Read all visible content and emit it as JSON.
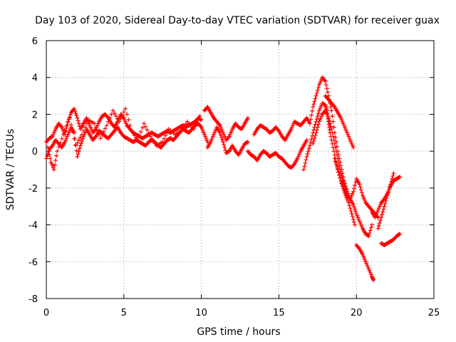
{
  "chart_data": {
    "type": "scatter",
    "title": "Day 103 of 2020, Sidereal Day-to-day VTEC variation (SDTVAR) for receiver guax",
    "xlabel": "GPS time / hours",
    "ylabel": "SDTVAR / TECUs",
    "xlim": [
      0,
      25
    ],
    "ylim": [
      -8,
      6
    ],
    "xticks": [
      0,
      5,
      10,
      15,
      20,
      25
    ],
    "yticks": [
      -8,
      -6,
      -4,
      -2,
      0,
      2,
      4,
      6
    ],
    "xtick_labels": [
      "0",
      "5",
      "10",
      "15",
      "20",
      "25"
    ],
    "ytick_labels": [
      "-8",
      "-6",
      "-4",
      "-2",
      "0",
      "2",
      "4",
      "6"
    ],
    "grid": true,
    "marker": "+",
    "color": "#ff0000",
    "series": [
      {
        "name": "track-1",
        "x": [
          0.0,
          0.2,
          0.4,
          0.6,
          0.8,
          1.0,
          1.2,
          1.4,
          1.6,
          1.8,
          2.0,
          2.2,
          2.4,
          2.6,
          2.8,
          3.0,
          3.2,
          3.4,
          3.6,
          3.8,
          4.0,
          4.2,
          4.4,
          4.6,
          4.8,
          5.0,
          5.2,
          5.4,
          5.6,
          5.8,
          6.0,
          6.2,
          6.4,
          6.6,
          6.8,
          7.0,
          7.2,
          7.4,
          7.6,
          7.8,
          8.0,
          8.2,
          8.4,
          8.6,
          8.8,
          9.0,
          9.2,
          9.4,
          9.6,
          9.8,
          10.0
        ],
        "y": [
          0.5,
          0.7,
          0.8,
          1.2,
          1.5,
          1.3,
          0.9,
          1.6,
          2.1,
          2.3,
          1.8,
          1.2,
          1.5,
          1.8,
          1.4,
          1.0,
          1.2,
          1.6,
          1.9,
          2.0,
          1.8,
          1.5,
          1.3,
          1.6,
          2.0,
          1.8,
          1.4,
          1.2,
          1.0,
          0.9,
          0.8,
          0.7,
          0.8,
          0.9,
          1.0,
          0.9,
          0.8,
          0.9,
          1.0,
          1.1,
          1.0,
          1.1,
          1.2,
          1.3,
          1.4,
          1.3,
          1.4,
          1.5,
          1.6,
          1.8,
          1.7
        ]
      },
      {
        "name": "track-2",
        "x": [
          0.0,
          0.2,
          0.4,
          0.6,
          0.8,
          1.0,
          1.2,
          1.4,
          1.6,
          1.8,
          2.0,
          2.2,
          2.4,
          2.6,
          2.8,
          3.0,
          3.2,
          3.4,
          3.6,
          3.8,
          4.0,
          4.2,
          4.4,
          4.6,
          4.8,
          5.0,
          5.2,
          5.4,
          5.6,
          5.8,
          6.0,
          6.2,
          6.4,
          6.6,
          6.8,
          7.0,
          7.2,
          7.4,
          7.6,
          7.8,
          8.0,
          8.2,
          8.4,
          8.6,
          8.8,
          9.0,
          9.2,
          9.4,
          9.6,
          9.8,
          10.0,
          10.2,
          10.4
        ],
        "y": [
          -0.4,
          0.1,
          0.3,
          0.6,
          0.4,
          0.2,
          0.5,
          0.9,
          1.3,
          1.0,
          -0.3,
          0.3,
          0.8,
          1.2,
          0.9,
          0.6,
          0.8,
          1.1,
          1.0,
          0.8,
          0.7,
          0.9,
          1.1,
          1.3,
          1.0,
          0.8,
          0.7,
          0.6,
          0.5,
          0.6,
          0.5,
          0.4,
          0.3,
          0.5,
          0.6,
          0.5,
          0.3,
          0.2,
          0.4,
          0.6,
          0.7,
          0.6,
          0.8,
          1.0,
          1.2,
          1.1,
          1.0,
          1.2,
          1.4,
          1.5,
          1.3,
          0.9,
          0.5
        ]
      },
      {
        "name": "track-3",
        "x": [
          0.1,
          0.3,
          0.5,
          0.7,
          1.1,
          1.5,
          1.9,
          2.3,
          2.7,
          3.1,
          3.5,
          3.9,
          4.3,
          4.7,
          5.1,
          5.5,
          5.9,
          6.3,
          6.7,
          7.1,
          7.5,
          7.9,
          8.3,
          8.7,
          9.1,
          9.5,
          9.9
        ],
        "y": [
          0.2,
          -0.6,
          -1.0,
          0.0,
          0.9,
          1.8,
          0.3,
          0.9,
          1.7,
          1.5,
          0.7,
          1.4,
          2.2,
          1.6,
          2.3,
          1.1,
          0.6,
          1.5,
          0.8,
          0.3,
          0.5,
          1.2,
          0.9,
          1.1,
          1.6,
          1.2,
          1.9
        ]
      },
      {
        "name": "track-4",
        "x": [
          10.2,
          10.4,
          10.6,
          10.8,
          11.0,
          11.2,
          11.4,
          11.6,
          11.8,
          12.0,
          12.2,
          12.4,
          12.6,
          12.8,
          13.0
        ],
        "y": [
          2.2,
          2.4,
          2.1,
          1.8,
          1.6,
          1.4,
          1.0,
          0.6,
          0.8,
          1.2,
          1.5,
          1.3,
          1.2,
          1.5,
          1.8
        ]
      },
      {
        "name": "track-5",
        "x": [
          10.4,
          10.6,
          10.8,
          11.0,
          11.2,
          11.4,
          11.6,
          11.8,
          12.0,
          12.2,
          12.4,
          12.6,
          12.8,
          13.0
        ],
        "y": [
          0.2,
          0.5,
          0.9,
          1.3,
          1.0,
          0.5,
          -0.1,
          0.0,
          0.3,
          0.0,
          -0.2,
          0.1,
          0.4,
          0.5
        ]
      },
      {
        "name": "track-6",
        "x": [
          13.4,
          13.6,
          13.8,
          14.0,
          14.2,
          14.4,
          14.6,
          14.8,
          15.0,
          15.2,
          15.4,
          15.6,
          15.8,
          16.0,
          16.2,
          16.4,
          16.6,
          16.8,
          17.0
        ],
        "y": [
          0.9,
          1.2,
          1.4,
          1.3,
          1.2,
          1.0,
          1.1,
          1.3,
          1.1,
          0.8,
          0.6,
          0.9,
          1.2,
          1.6,
          1.5,
          1.4,
          1.6,
          1.8,
          1.5
        ]
      },
      {
        "name": "track-7",
        "x": [
          13.0,
          13.2,
          13.4,
          13.6,
          13.8,
          14.0,
          14.2,
          14.4,
          14.6,
          14.8,
          15.0,
          15.2,
          15.4,
          15.6,
          15.8,
          16.0,
          16.2,
          16.4,
          16.6,
          16.8
        ],
        "y": [
          0.0,
          -0.2,
          -0.3,
          -0.5,
          -0.2,
          0.0,
          -0.1,
          -0.3,
          -0.2,
          -0.1,
          -0.3,
          -0.4,
          -0.6,
          -0.8,
          -0.9,
          -0.7,
          -0.4,
          0.0,
          0.3,
          0.6
        ]
      },
      {
        "name": "track-8",
        "x": [
          16.6,
          16.8,
          17.0,
          17.2,
          17.4,
          17.6,
          17.8,
          18.0,
          18.1,
          18.2,
          18.3,
          18.5,
          18.7,
          18.9,
          19.1,
          19.3,
          19.5,
          19.7,
          19.9
        ],
        "y": [
          -1.0,
          -0.3,
          0.3,
          1.0,
          1.6,
          2.2,
          2.6,
          2.5,
          2.2,
          1.6,
          1.0,
          0.2,
          -0.6,
          -1.3,
          -1.9,
          -2.4,
          -2.8,
          -3.4,
          -4.0
        ]
      },
      {
        "name": "track-9",
        "x": [
          17.0,
          17.2,
          17.4,
          17.6,
          17.8,
          18.0,
          18.2,
          18.4,
          18.6,
          18.8,
          19.0,
          19.2,
          19.4
        ],
        "y": [
          1.5,
          2.4,
          3.0,
          3.6,
          4.0,
          3.8,
          3.0,
          2.2,
          1.0,
          0.0,
          -0.8,
          -1.6,
          -2.2
        ]
      },
      {
        "name": "track-10",
        "x": [
          18.0,
          18.2,
          18.4,
          18.6,
          18.8,
          19.0,
          19.2,
          19.4,
          19.6,
          19.8
        ],
        "y": [
          3.0,
          2.8,
          2.6,
          2.4,
          2.1,
          1.8,
          1.4,
          1.0,
          0.6,
          0.2
        ]
      },
      {
        "name": "track-11",
        "x": [
          17.2,
          17.4,
          17.6,
          17.8,
          18.0,
          18.2,
          18.4,
          18.6,
          18.8,
          19.0,
          19.2,
          19.4,
          19.6,
          19.8,
          20.0,
          20.2,
          20.4,
          20.6,
          20.8,
          21.0,
          21.2,
          21.4
        ],
        "y": [
          0.4,
          1.0,
          1.6,
          2.0,
          2.2,
          1.8,
          1.2,
          0.4,
          -0.4,
          -1.2,
          -1.8,
          -2.2,
          -2.6,
          -2.2,
          -1.5,
          -1.8,
          -2.4,
          -2.8,
          -3.0,
          -3.2,
          -3.4,
          -3.6
        ]
      },
      {
        "name": "track-12",
        "x": [
          18.6,
          18.8,
          19.0,
          19.2,
          19.4,
          19.6,
          19.8,
          20.0,
          20.2,
          20.4,
          20.6,
          20.8,
          21.0
        ],
        "y": [
          -0.4,
          -1.0,
          -1.6,
          -2.0,
          -2.4,
          -2.6,
          -2.9,
          -3.4,
          -3.8,
          -4.2,
          -4.5,
          -4.6,
          -4.0
        ]
      },
      {
        "name": "track-13",
        "x": [
          21.0,
          21.2,
          21.4,
          21.6,
          21.8,
          22.0,
          22.2,
          22.4,
          22.6,
          22.8
        ],
        "y": [
          -3.3,
          -3.6,
          -3.2,
          -2.8,
          -2.6,
          -2.3,
          -1.9,
          -1.6,
          -1.5,
          -1.4
        ]
      },
      {
        "name": "track-14",
        "x": [
          21.4,
          21.6,
          21.8,
          22.0,
          22.2,
          22.4
        ],
        "y": [
          -4.2,
          -3.6,
          -3.0,
          -2.4,
          -1.8,
          -1.2
        ]
      },
      {
        "name": "track-15",
        "x": [
          21.6,
          21.8,
          22.0,
          22.2,
          22.4,
          22.6,
          22.8
        ],
        "y": [
          -5.0,
          -5.1,
          -5.0,
          -4.9,
          -4.8,
          -4.6,
          -4.5
        ]
      },
      {
        "name": "track-16",
        "x": [
          20.0,
          20.2,
          20.4,
          20.6,
          20.8,
          21.0,
          21.1
        ],
        "y": [
          -5.1,
          -5.3,
          -5.6,
          -6.0,
          -6.4,
          -6.8,
          -7.0
        ]
      }
    ]
  }
}
